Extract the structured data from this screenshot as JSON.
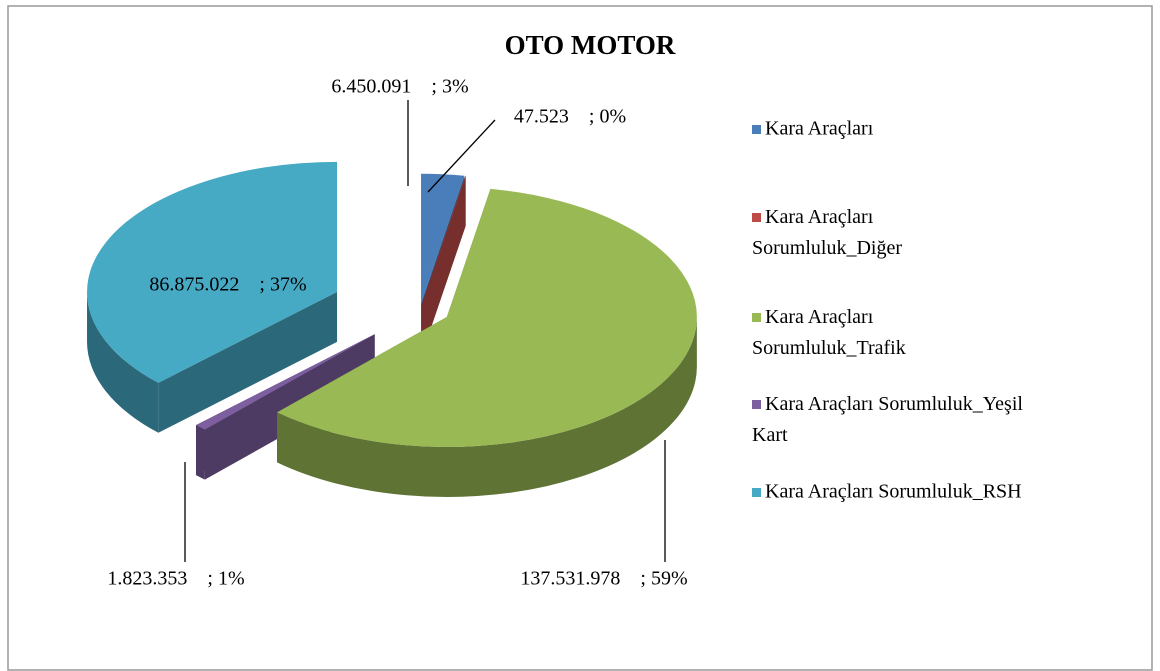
{
  "chart_data": {
    "type": "pie3d",
    "title": "OTO MOTOR",
    "categories": [
      "Kara Araçları",
      "Kara Araçları Sorumluluk_Diğer",
      "Kara Araçları Sorumluluk_Trafik",
      "Kara Araçları Sorumluluk_Yeşil Kart",
      "Kara Araçları Sorumluluk_RSH"
    ],
    "values": [
      6450091,
      47523,
      137531978,
      1823353,
      86875022
    ],
    "value_labels": [
      "6.450.091    ; 3%",
      "47.523    ; 0%",
      "137.531.978    ; 59%",
      "1.823.353    ; 1%",
      "86.875.022    ; 37%"
    ],
    "colors": [
      "#4a7ebb",
      "#be4b48",
      "#98b954",
      "#7d5fa0",
      "#46aac5"
    ],
    "legend": "right"
  }
}
